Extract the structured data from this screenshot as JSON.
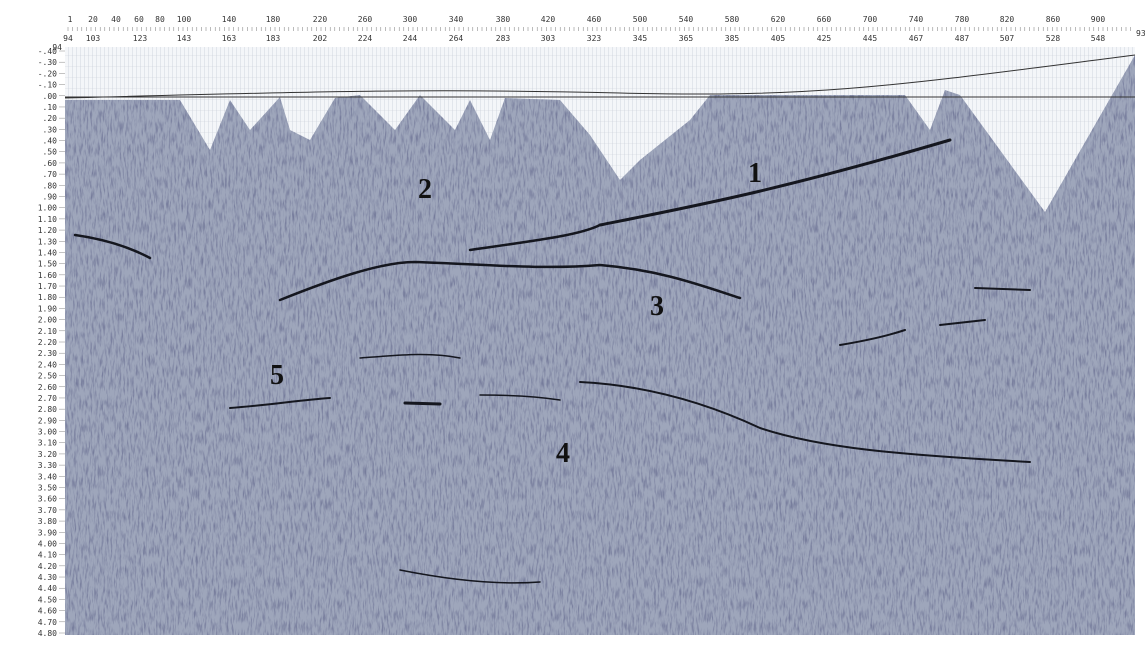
{
  "top_axis": {
    "row1": [
      "1",
      "20",
      "40",
      "60",
      "80",
      "100",
      "140",
      "180",
      "220",
      "260",
      "300",
      "340",
      "380",
      "420",
      "460",
      "500",
      "540",
      "580",
      "620",
      "660",
      "700",
      "740",
      "780",
      "820",
      "860",
      "900"
    ],
    "row2": [
      "94",
      "103",
      "123",
      "143",
      "163",
      "183",
      "202",
      "224",
      "244",
      "264",
      "283",
      "303",
      "323",
      "345",
      "365",
      "385",
      "405",
      "425",
      "445",
      "467",
      "487",
      "507",
      "528",
      "548"
    ],
    "left_end": "94",
    "right_end": "93"
  },
  "time_axis": [
    "-.40",
    "-.30",
    "-.20",
    "-.10",
    ".00",
    ".10",
    ".20",
    ".30",
    ".40",
    ".50",
    ".60",
    ".70",
    ".80",
    ".90",
    "1.00",
    "1.10",
    "1.20",
    "1.30",
    "1.40",
    "1.50",
    "1.60",
    "1.70",
    "1.80",
    "1.90",
    "2.00",
    "2.10",
    "2.20",
    "2.30",
    "2.40",
    "2.50",
    "2.60",
    "2.70",
    "2.80",
    "2.90",
    "3.00",
    "3.10",
    "3.20",
    "3.30",
    "3.40",
    "3.50",
    "3.60",
    "3.70",
    "3.80",
    "3.90",
    "4.00",
    "4.10",
    "4.20",
    "4.30",
    "4.40",
    "4.50",
    "4.60",
    "4.70",
    "4.80"
  ],
  "annotations": [
    "1",
    "2",
    "3",
    "4",
    "5"
  ]
}
